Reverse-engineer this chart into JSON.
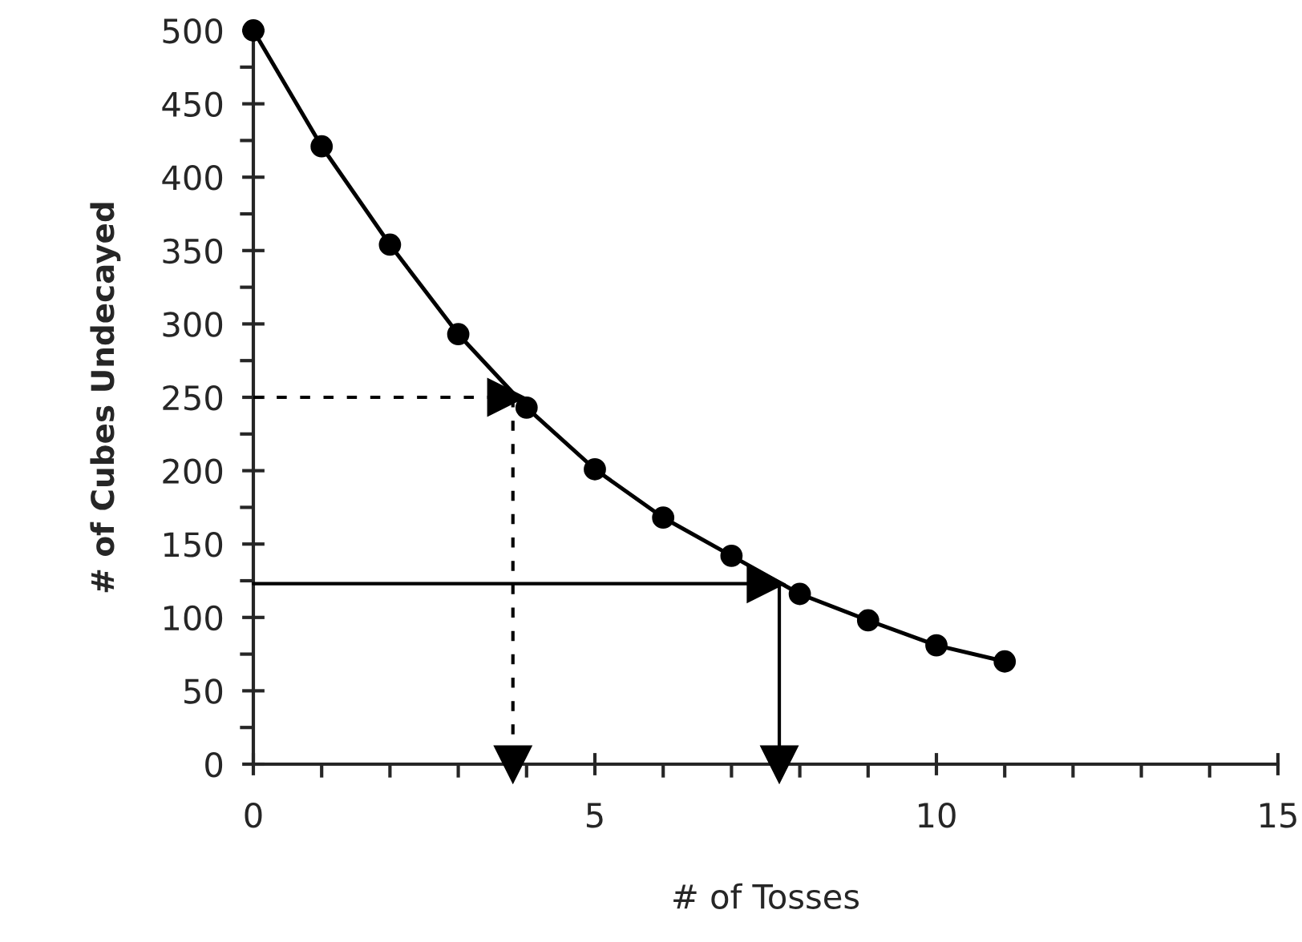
{
  "chart_data": {
    "type": "line",
    "xlabel": "# of Tosses",
    "ylabel": "# of Cubes Undecayed",
    "x": [
      0,
      1,
      2,
      3,
      4,
      5,
      6,
      7,
      8,
      9,
      10,
      11
    ],
    "series": [
      {
        "color": "#000000",
        "marker": "circle",
        "line_style": "solid",
        "values": [
          500,
          421,
          354,
          293,
          243,
          201,
          168,
          142,
          116,
          98,
          81,
          70
        ]
      },
      {
        "color": "#000000",
        "marker": "triangle",
        "line_style": "dashed",
        "x": [
          0,
          3.7
        ],
        "values": [
          250,
          250
        ]
      },
      {
        "color": "#000000",
        "marker": "triangle",
        "line_style": "dashed",
        "x": [
          3.8,
          3.8
        ],
        "values": [
          250,
          0
        ]
      },
      {
        "color": "#000000",
        "marker": "triangle",
        "line_style": "solid",
        "x": [
          0,
          7.5
        ],
        "values": [
          123,
          123
        ]
      },
      {
        "color": "#000000",
        "marker": "triangle",
        "line_style": "solid",
        "x": [
          7.7,
          7.7
        ],
        "values": [
          123,
          0
        ]
      }
    ],
    "xlim": [
      0,
      15
    ],
    "xticks": [
      0,
      5,
      10,
      15
    ],
    "ylim": [
      0,
      500
    ],
    "yticks": [
      0,
      50,
      100,
      150,
      200,
      250,
      300,
      350,
      400,
      450,
      500
    ],
    "grid": false,
    "legend": false
  }
}
